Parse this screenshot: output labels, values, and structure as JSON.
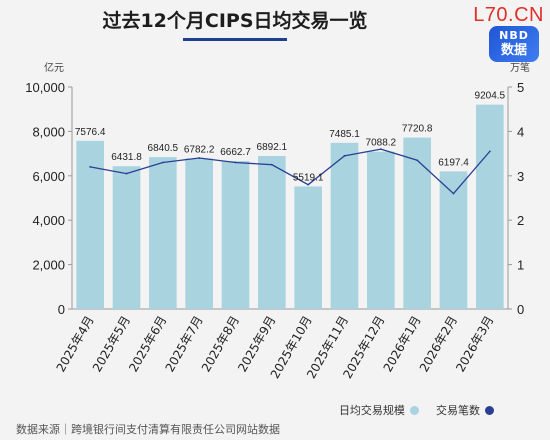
{
  "header": {
    "title": "过去12个月CIPS日均交易一览",
    "brand_text": "L70.CN",
    "badge_line1": "NBD",
    "badge_line2": "数据"
  },
  "chart_data": {
    "type": "bar+line",
    "title": "过去12个月CIPS日均交易一览",
    "categories": [
      "2025年4月",
      "2025年5月",
      "2025年6月",
      "2025年7月",
      "2025年8月",
      "2025年9月",
      "2025年10月",
      "2025年11月",
      "2025年12月",
      "2026年1月",
      "2026年2月",
      "2026年3月"
    ],
    "left_axis": {
      "unit": "亿元",
      "ylim": [
        0,
        10000
      ],
      "ticks": [
        0,
        2000,
        4000,
        6000,
        8000,
        10000
      ],
      "tick_labels": [
        "0",
        "2,000",
        "4,000",
        "6,000",
        "8,000",
        "10,000"
      ]
    },
    "right_axis": {
      "unit": "万笔",
      "ylim": [
        0,
        5
      ],
      "ticks": [
        0,
        1,
        2,
        3,
        4,
        5
      ],
      "tick_labels": [
        "0",
        "1",
        "2",
        "3",
        "4",
        "5"
      ]
    },
    "series": [
      {
        "name": "日均交易规模",
        "type": "bar",
        "axis": "left",
        "color": "#a9d3df",
        "values": [
          7576.4,
          6431.8,
          6840.5,
          6782.2,
          6662.7,
          6892.1,
          5519.1,
          7485.1,
          7088.2,
          7720.8,
          6197.4,
          9204.5
        ],
        "labels": [
          "7576.4",
          "6431.8",
          "6840.5",
          "6782.2",
          "6662.7",
          "6892.1",
          "5519.1",
          "7485.1",
          "7088.2",
          "7720.8",
          "6197.4",
          "9204.5"
        ]
      },
      {
        "name": "交易笔数",
        "type": "line",
        "axis": "right",
        "color": "#2a3f93",
        "values": [
          3.2,
          3.05,
          3.3,
          3.4,
          3.3,
          3.25,
          2.8,
          3.45,
          3.6,
          3.35,
          2.6,
          3.55
        ]
      }
    ],
    "grid": false,
    "legend": "bottom-right"
  },
  "colors": {
    "bar": "#a9d3df",
    "line": "#2a3f93",
    "accent": "#1f3f8f",
    "brand": "#e0302a"
  },
  "footer": {
    "source": "数据来源｜跨境银行间支付清算有限责任公司网站数据"
  }
}
